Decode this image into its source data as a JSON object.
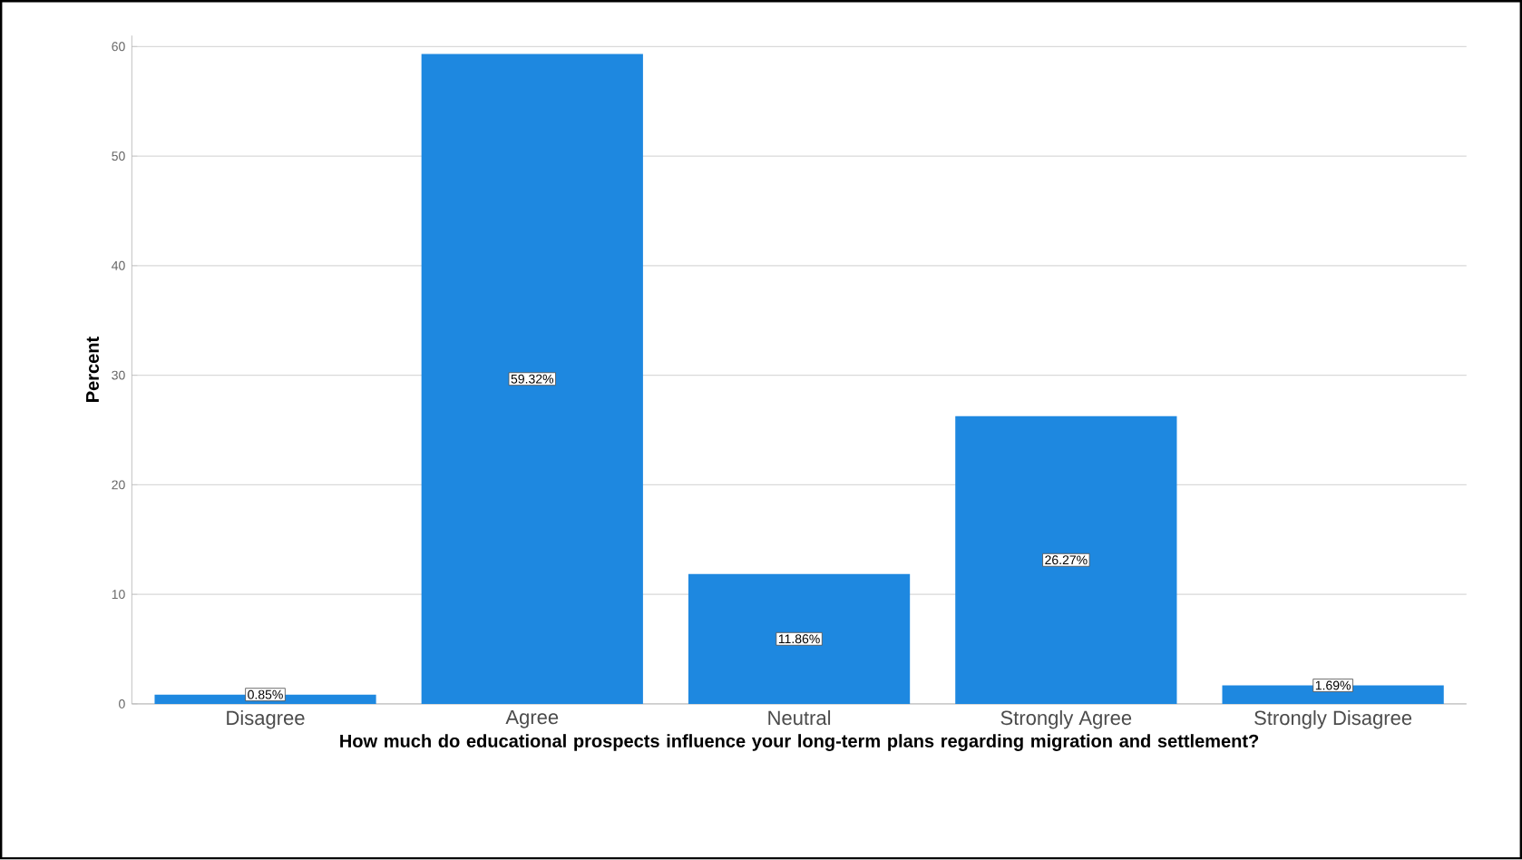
{
  "chart_data": {
    "type": "bar",
    "xlabel": "How much do educational prospects influence your long-term plans regarding migration and settlement?",
    "ylabel": "Percent",
    "categories": [
      "Disagree",
      "Agree",
      "Neutral",
      "Strongly Agree",
      "Strongly Disagree"
    ],
    "values": [
      0.85,
      59.32,
      11.86,
      26.27,
      1.69
    ],
    "value_labels": [
      "0.85%",
      "59.32%",
      "11.86%",
      "26.27%",
      "1.69%"
    ],
    "color": "#1e88e0",
    "ylim": [
      0,
      61
    ],
    "yticks": [
      0,
      10,
      20,
      30,
      40,
      50,
      60
    ],
    "grid": "y"
  }
}
